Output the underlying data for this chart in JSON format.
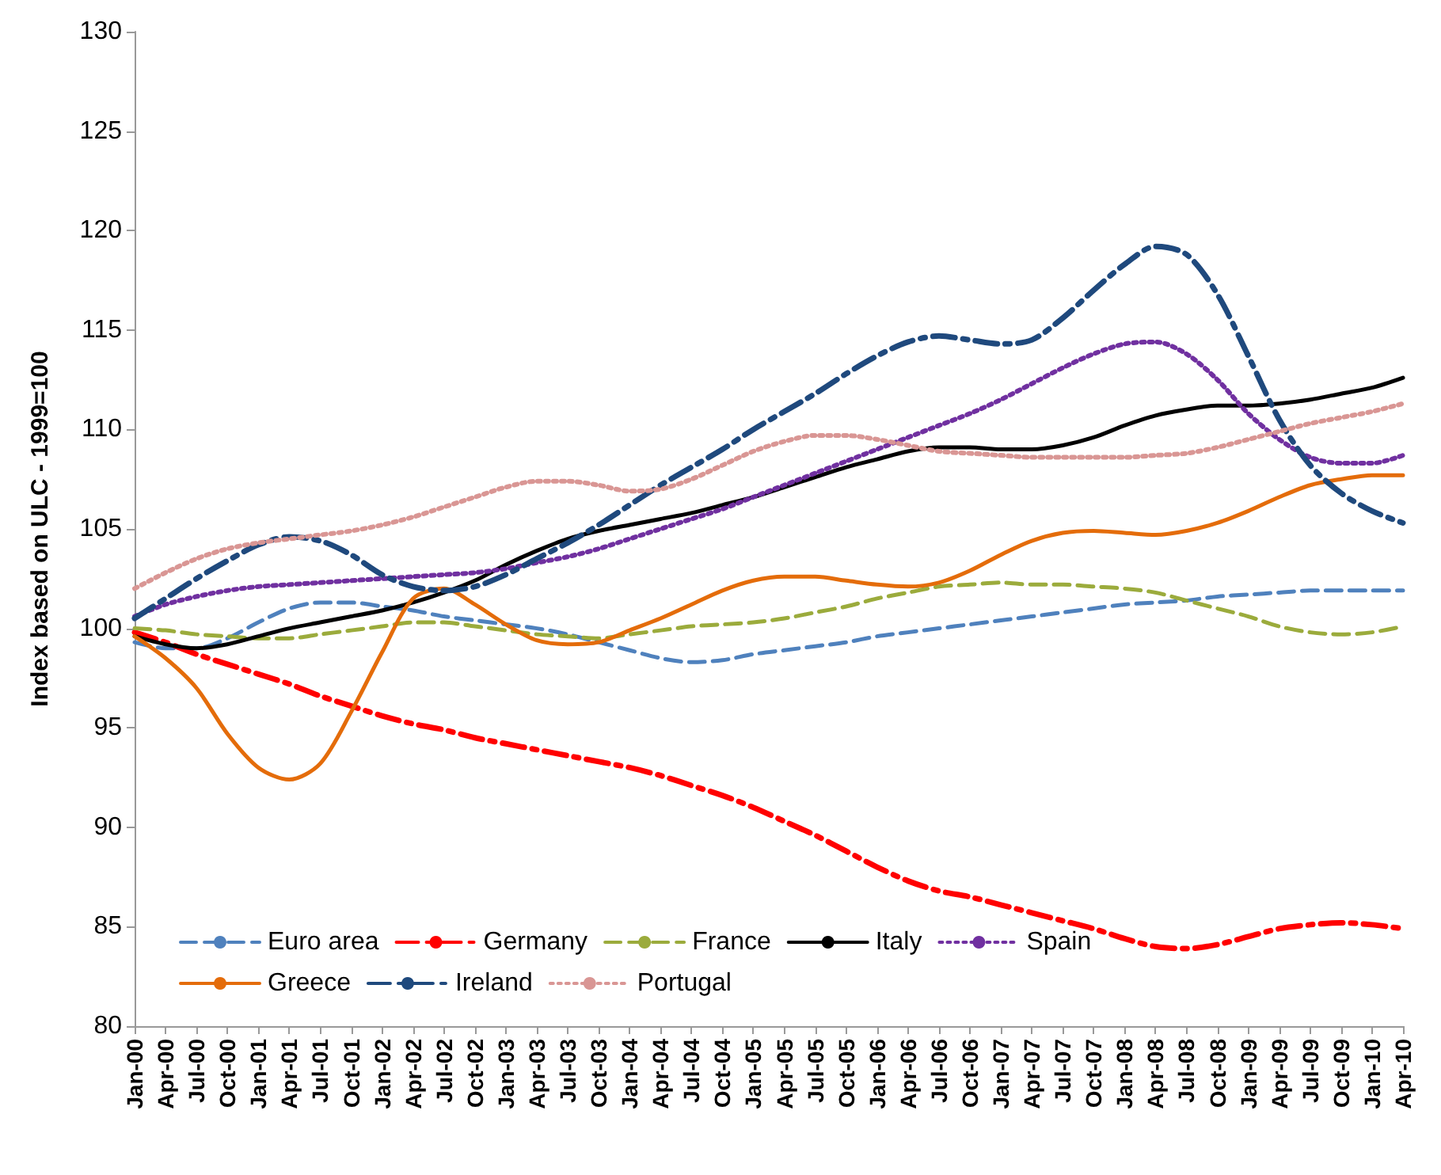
{
  "chart_data": {
    "type": "line",
    "ylabel": "Index based on ULC - 1999=100",
    "categories": [
      "Jan-00",
      "Apr-00",
      "Jul-00",
      "Oct-00",
      "Jan-01",
      "Apr-01",
      "Jul-01",
      "Oct-01",
      "Jan-02",
      "Apr-02",
      "Jul-02",
      "Oct-02",
      "Jan-03",
      "Apr-03",
      "Jul-03",
      "Oct-03",
      "Jan-04",
      "Apr-04",
      "Jul-04",
      "Oct-04",
      "Jan-05",
      "Apr-05",
      "Jul-05",
      "Oct-05",
      "Jan-06",
      "Apr-06",
      "Jul-06",
      "Oct-06",
      "Jan-07",
      "Apr-07",
      "Jul-07",
      "Oct-07",
      "Jan-08",
      "Apr-08",
      "Jul-08",
      "Oct-08",
      "Jan-09",
      "Apr-09",
      "Jul-09",
      "Oct-09",
      "Jan-10",
      "Apr-10"
    ],
    "ylim": [
      80,
      130
    ],
    "yticks": [
      80,
      85,
      90,
      95,
      100,
      105,
      110,
      115,
      120,
      125,
      130
    ],
    "grid": false,
    "legend": "bottom left",
    "marker": "none",
    "series": [
      {
        "name": "Euro area",
        "color": "#4f81bd",
        "line_style": "dashed",
        "values": [
          99.3,
          99.0,
          99.0,
          99.5,
          100.3,
          101.0,
          101.3,
          101.3,
          101.1,
          100.9,
          100.6,
          100.4,
          100.2,
          100.0,
          99.7,
          99.3,
          98.9,
          98.5,
          98.3,
          98.4,
          98.7,
          98.9,
          99.1,
          99.3,
          99.6,
          99.8,
          100.0,
          100.2,
          100.4,
          100.6,
          100.8,
          101.0,
          101.2,
          101.3,
          101.4,
          101.6,
          101.7,
          101.8,
          101.9,
          101.9,
          101.9,
          101.9
        ]
      },
      {
        "name": "Germany",
        "color": "#ff0000",
        "line_style": "dashdot",
        "values": [
          99.8,
          99.3,
          98.7,
          98.2,
          97.7,
          97.2,
          96.6,
          96.1,
          95.6,
          95.2,
          94.9,
          94.5,
          94.2,
          93.9,
          93.6,
          93.3,
          93.0,
          92.6,
          92.1,
          91.6,
          91.0,
          90.3,
          89.6,
          88.8,
          88.0,
          87.3,
          86.8,
          86.5,
          86.1,
          85.7,
          85.3,
          84.9,
          84.4,
          84.0,
          83.9,
          84.1,
          84.5,
          84.9,
          85.1,
          85.2,
          85.1,
          84.9
        ]
      },
      {
        "name": "France",
        "color": "#9bab3c",
        "line_style": "dashed",
        "values": [
          100.0,
          99.9,
          99.7,
          99.6,
          99.5,
          99.5,
          99.7,
          99.9,
          100.1,
          100.3,
          100.3,
          100.1,
          99.9,
          99.7,
          99.6,
          99.5,
          99.7,
          99.9,
          100.1,
          100.2,
          100.3,
          100.5,
          100.8,
          101.1,
          101.5,
          101.8,
          102.1,
          102.2,
          102.3,
          102.2,
          102.2,
          102.1,
          102.0,
          101.8,
          101.4,
          101.0,
          100.6,
          100.1,
          99.8,
          99.7,
          99.8,
          100.1
        ]
      },
      {
        "name": "Italy",
        "color": "#000000",
        "line_style": "solid",
        "values": [
          99.6,
          99.2,
          99.0,
          99.2,
          99.6,
          100.0,
          100.3,
          100.6,
          100.9,
          101.3,
          101.8,
          102.4,
          103.2,
          103.9,
          104.5,
          104.9,
          105.2,
          105.5,
          105.8,
          106.2,
          106.6,
          107.1,
          107.6,
          108.1,
          108.5,
          108.9,
          109.1,
          109.1,
          109.0,
          109.0,
          109.2,
          109.6,
          110.2,
          110.7,
          111.0,
          111.2,
          111.2,
          111.3,
          111.5,
          111.8,
          112.1,
          112.6
        ]
      },
      {
        "name": "Spain",
        "color": "#7030a0",
        "line_style": "dotted",
        "values": [
          100.6,
          101.2,
          101.6,
          101.9,
          102.1,
          102.2,
          102.3,
          102.4,
          102.5,
          102.6,
          102.7,
          102.8,
          103.0,
          103.3,
          103.6,
          104.0,
          104.5,
          105.0,
          105.5,
          106.0,
          106.6,
          107.2,
          107.8,
          108.4,
          109.0,
          109.6,
          110.2,
          110.8,
          111.5,
          112.3,
          113.1,
          113.8,
          114.3,
          114.4,
          113.8,
          112.5,
          110.8,
          109.5,
          108.6,
          108.3,
          108.3,
          108.7
        ]
      },
      {
        "name": "Greece",
        "color": "#e46c0a",
        "line_style": "solid",
        "values": [
          99.6,
          98.5,
          97.0,
          94.7,
          93.0,
          92.4,
          93.2,
          95.8,
          98.8,
          101.5,
          102.0,
          101.2,
          100.2,
          99.4,
          99.2,
          99.3,
          99.9,
          100.5,
          101.2,
          101.9,
          102.4,
          102.6,
          102.6,
          102.4,
          102.2,
          102.1,
          102.3,
          102.9,
          103.7,
          104.4,
          104.8,
          104.9,
          104.8,
          104.7,
          104.9,
          105.3,
          105.9,
          106.6,
          107.2,
          107.5,
          107.7,
          107.7
        ]
      },
      {
        "name": "Ireland",
        "color": "#1f497d",
        "line_style": "dashdot",
        "values": [
          100.5,
          101.5,
          102.5,
          103.4,
          104.2,
          104.6,
          104.4,
          103.7,
          102.7,
          102.1,
          101.9,
          102.1,
          102.7,
          103.5,
          104.3,
          105.2,
          106.2,
          107.2,
          108.1,
          109.0,
          110.0,
          110.9,
          111.8,
          112.8,
          113.7,
          114.4,
          114.7,
          114.5,
          114.3,
          114.5,
          115.6,
          117.0,
          118.3,
          119.2,
          118.8,
          116.8,
          113.7,
          110.5,
          108.2,
          106.8,
          105.9,
          105.3
        ]
      },
      {
        "name": "Portugal",
        "color": "#d99694",
        "line_style": "dotted",
        "values": [
          102.0,
          102.8,
          103.5,
          104.0,
          104.3,
          104.5,
          104.7,
          104.9,
          105.2,
          105.6,
          106.1,
          106.6,
          107.1,
          107.4,
          107.4,
          107.2,
          106.9,
          107.0,
          107.5,
          108.2,
          108.9,
          109.4,
          109.7,
          109.7,
          109.5,
          109.2,
          108.9,
          108.8,
          108.7,
          108.6,
          108.6,
          108.6,
          108.6,
          108.7,
          108.8,
          109.1,
          109.5,
          109.9,
          110.3,
          110.6,
          110.9,
          111.3
        ]
      }
    ]
  }
}
